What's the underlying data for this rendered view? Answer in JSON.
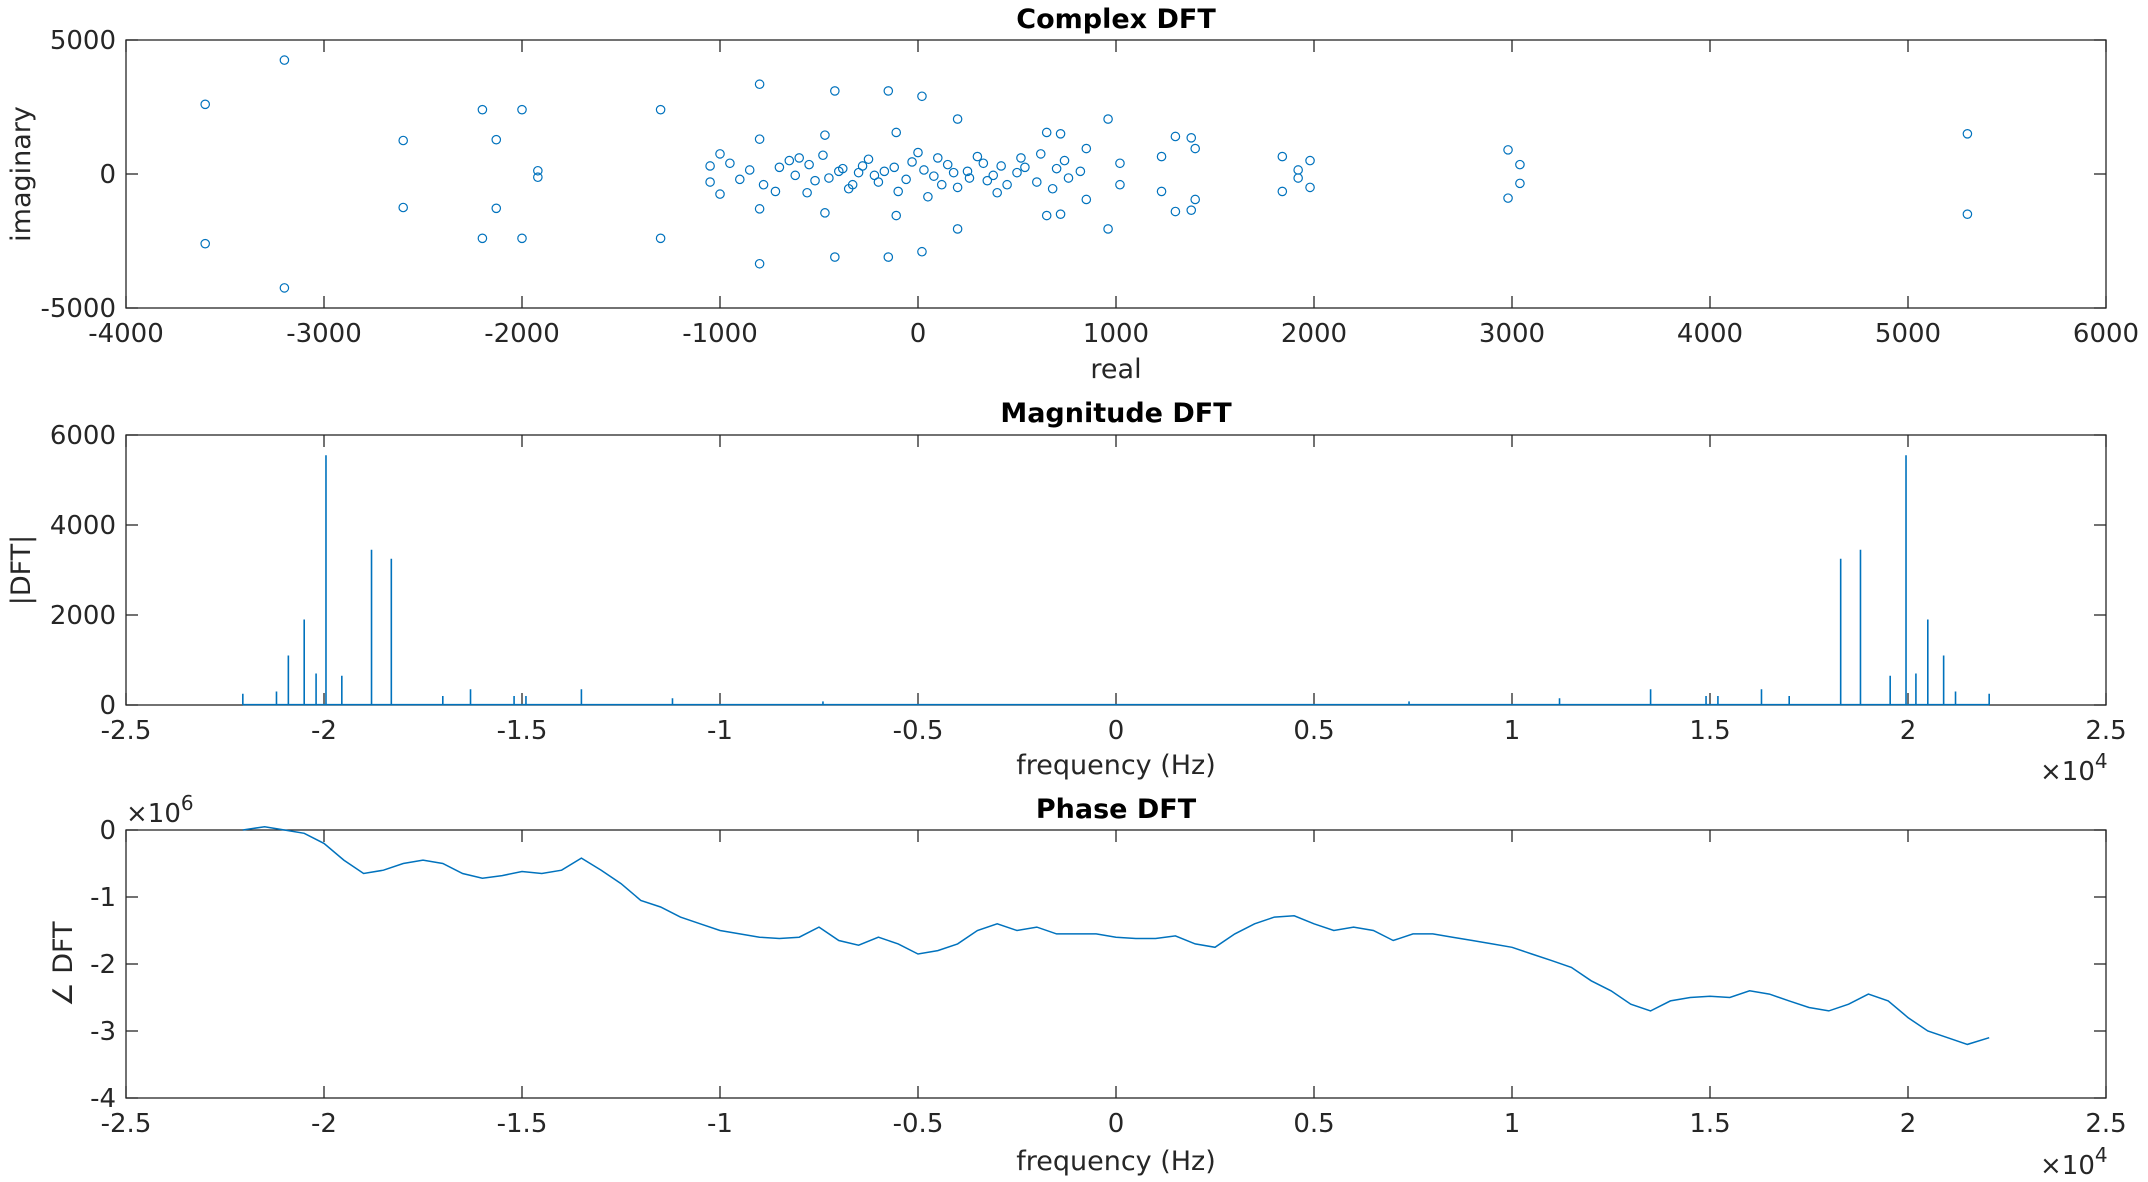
{
  "chart_data": [
    {
      "type": "scatter",
      "title": "Complex DFT",
      "xlabel": "real",
      "ylabel": "imaginary",
      "xlim": [
        -4000,
        6000
      ],
      "ylim": [
        -5000,
        5000
      ],
      "xticks": [
        "-4000",
        "-3000",
        "-2000",
        "-1000",
        "0",
        "1000",
        "2000",
        "3000",
        "4000",
        "5000",
        "6000"
      ],
      "yticks": [
        "-5000",
        "0",
        "5000"
      ],
      "color": "#0072BD",
      "marker": "open-circle",
      "points": [
        [
          -3600,
          2600
        ],
        [
          -3600,
          -2600
        ],
        [
          -3200,
          4250
        ],
        [
          -3200,
          -4250
        ],
        [
          -2600,
          1250
        ],
        [
          -2600,
          -1250
        ],
        [
          -2200,
          2400
        ],
        [
          -2200,
          -2400
        ],
        [
          -2130,
          1280
        ],
        [
          -2130,
          -1280
        ],
        [
          -2000,
          2400
        ],
        [
          -2000,
          -2400
        ],
        [
          -1920,
          120
        ],
        [
          -1920,
          -120
        ],
        [
          -1300,
          2400
        ],
        [
          -1300,
          -2400
        ],
        [
          -800,
          3350
        ],
        [
          -800,
          -3350
        ],
        [
          -420,
          3100
        ],
        [
          -420,
          -3100
        ],
        [
          -150,
          3100
        ],
        [
          -150,
          -3100
        ],
        [
          20,
          2900
        ],
        [
          20,
          -2900
        ],
        [
          200,
          2050
        ],
        [
          200,
          -2050
        ],
        [
          -800,
          1300
        ],
        [
          -800,
          -1300
        ],
        [
          -470,
          1450
        ],
        [
          -470,
          -1450
        ],
        [
          -110,
          1550
        ],
        [
          -110,
          -1550
        ],
        [
          -1000,
          750
        ],
        [
          -1000,
          -750
        ],
        [
          -1050,
          300
        ],
        [
          -1050,
          -300
        ],
        [
          650,
          1550
        ],
        [
          650,
          -1550
        ],
        [
          720,
          1500
        ],
        [
          720,
          -1500
        ],
        [
          850,
          950
        ],
        [
          850,
          -950
        ],
        [
          960,
          2050
        ],
        [
          960,
          -2050
        ],
        [
          1020,
          400
        ],
        [
          1020,
          -400
        ],
        [
          1230,
          650
        ],
        [
          1230,
          -650
        ],
        [
          1300,
          1400
        ],
        [
          1300,
          -1400
        ],
        [
          1380,
          1350
        ],
        [
          1380,
          -1350
        ],
        [
          1400,
          950
        ],
        [
          1400,
          -950
        ],
        [
          1840,
          650
        ],
        [
          1840,
          -650
        ],
        [
          1920,
          150
        ],
        [
          1920,
          -150
        ],
        [
          1980,
          500
        ],
        [
          1980,
          -500
        ],
        [
          2980,
          900
        ],
        [
          2980,
          -900
        ],
        [
          3040,
          350
        ],
        [
          3040,
          -350
        ],
        [
          5300,
          1500
        ],
        [
          5300,
          -1500
        ],
        [
          -120,
          250
        ],
        [
          -60,
          -200
        ],
        [
          30,
          150
        ],
        [
          80,
          -80
        ],
        [
          150,
          350
        ],
        [
          -200,
          -300
        ],
        [
          250,
          100
        ],
        [
          -300,
          50
        ],
        [
          350,
          -250
        ],
        [
          -380,
          200
        ],
        [
          420,
          300
        ],
        [
          -450,
          -150
        ],
        [
          500,
          50
        ],
        [
          -550,
          350
        ],
        [
          600,
          -300
        ],
        [
          -620,
          -50
        ],
        [
          700,
          200
        ],
        [
          -700,
          250
        ],
        [
          760,
          -150
        ],
        [
          -780,
          -400
        ],
        [
          820,
          100
        ],
        [
          -850,
          150
        ],
        [
          -900,
          -200
        ],
        [
          -950,
          400
        ],
        [
          100,
          600
        ],
        [
          -100,
          -650
        ],
        [
          200,
          -500
        ],
        [
          -250,
          550
        ],
        [
          300,
          650
        ],
        [
          -350,
          -550
        ],
        [
          400,
          -700
        ],
        [
          -480,
          700
        ],
        [
          520,
          600
        ],
        [
          -560,
          -700
        ],
        [
          620,
          750
        ],
        [
          -650,
          500
        ],
        [
          0,
          800
        ],
        [
          50,
          -850
        ],
        [
          -30,
          450
        ],
        [
          120,
          -400
        ],
        [
          -170,
          100
        ],
        [
          180,
          50
        ],
        [
          -220,
          -50
        ],
        [
          260,
          -150
        ],
        [
          -280,
          300
        ],
        [
          330,
          400
        ],
        [
          -330,
          -400
        ],
        [
          380,
          -50
        ],
        [
          -400,
          100
        ],
        [
          450,
          -400
        ],
        [
          -520,
          -250
        ],
        [
          540,
          250
        ],
        [
          -600,
          600
        ],
        [
          680,
          -550
        ],
        [
          -720,
          -650
        ],
        [
          740,
          500
        ]
      ]
    },
    {
      "type": "line",
      "title": "Magnitude DFT",
      "xlabel": "frequency (Hz)",
      "ylabel": "|DFT|",
      "xlim": [
        -25000,
        25000
      ],
      "ylim": [
        0,
        6000
      ],
      "x_exponent_label": "×10",
      "x_exponent": "4",
      "xticks": [
        "-2.5",
        "-2",
        "-1.5",
        "-1",
        "-0.5",
        "0",
        "0.5",
        "1",
        "1.5",
        "2",
        "2.5"
      ],
      "yticks": [
        "0",
        "2000",
        "4000",
        "6000"
      ],
      "color": "#0072BD",
      "peaks": [
        [
          -22050,
          250
        ],
        [
          -21200,
          300
        ],
        [
          -20900,
          1100
        ],
        [
          -20500,
          1900
        ],
        [
          -20200,
          700
        ],
        [
          -19950,
          5550
        ],
        [
          -19550,
          650
        ],
        [
          -18800,
          3450
        ],
        [
          -18300,
          3250
        ],
        [
          -17000,
          200
        ],
        [
          -16300,
          350
        ],
        [
          -15200,
          200
        ],
        [
          -14900,
          200
        ],
        [
          -13500,
          350
        ],
        [
          -11200,
          150
        ],
        [
          -7400,
          80
        ],
        [
          7400,
          80
        ],
        [
          11200,
          150
        ],
        [
          13500,
          350
        ],
        [
          14900,
          200
        ],
        [
          15200,
          200
        ],
        [
          16300,
          350
        ],
        [
          17000,
          200
        ],
        [
          18300,
          3250
        ],
        [
          18800,
          3450
        ],
        [
          19550,
          650
        ],
        [
          19950,
          5550
        ],
        [
          20200,
          700
        ],
        [
          20500,
          1900
        ],
        [
          20900,
          1100
        ],
        [
          21200,
          300
        ],
        [
          22050,
          250
        ]
      ]
    },
    {
      "type": "line",
      "title": "Phase DFT",
      "xlabel": "frequency (Hz)",
      "ylabel": "∠ DFT",
      "xlim": [
        -25000,
        25000
      ],
      "ylim": [
        -4000000,
        0
      ],
      "y_exponent_label": "×10",
      "y_exponent": "6",
      "x_exponent_label": "×10",
      "x_exponent": "4",
      "xticks": [
        "-2.5",
        "-2",
        "-1.5",
        "-1",
        "-0.5",
        "0",
        "0.5",
        "1",
        "1.5",
        "2",
        "2.5"
      ],
      "yticks": [
        "-4",
        "-3",
        "-2",
        "-1",
        "0"
      ],
      "color": "#0072BD",
      "x": [
        -22050,
        -21500,
        -21000,
        -20500,
        -20000,
        -19500,
        -19000,
        -18500,
        -18000,
        -17500,
        -17000,
        -16500,
        -16000,
        -15500,
        -15000,
        -14500,
        -14000,
        -13500,
        -13000,
        -12500,
        -12000,
        -11500,
        -11000,
        -10500,
        -10000,
        -9500,
        -9000,
        -8500,
        -8000,
        -7500,
        -7000,
        -6500,
        -6000,
        -5500,
        -5000,
        -4500,
        -4000,
        -3500,
        -3000,
        -2500,
        -2000,
        -1500,
        -1000,
        -500,
        0,
        500,
        1000,
        1500,
        2000,
        2500,
        3000,
        3500,
        4000,
        4500,
        5000,
        5500,
        6000,
        6500,
        7000,
        7500,
        8000,
        8500,
        9000,
        9500,
        10000,
        10500,
        11000,
        11500,
        12000,
        12500,
        13000,
        13500,
        14000,
        14500,
        15000,
        15500,
        16000,
        16500,
        17000,
        17500,
        18000,
        18500,
        19000,
        19500,
        20000,
        20500,
        21000,
        21500,
        22050
      ],
      "y": [
        0,
        50000,
        0,
        -50000,
        -200000,
        -450000,
        -650000,
        -600000,
        -500000,
        -450000,
        -500000,
        -650000,
        -720000,
        -680000,
        -620000,
        -650000,
        -600000,
        -420000,
        -600000,
        -800000,
        -1050000,
        -1150000,
        -1300000,
        -1400000,
        -1500000,
        -1550000,
        -1600000,
        -1620000,
        -1600000,
        -1450000,
        -1650000,
        -1720000,
        -1600000,
        -1700000,
        -1850000,
        -1800000,
        -1700000,
        -1500000,
        -1400000,
        -1500000,
        -1450000,
        -1550000,
        -1550000,
        -1550000,
        -1600000,
        -1620000,
        -1620000,
        -1580000,
        -1700000,
        -1750000,
        -1550000,
        -1400000,
        -1300000,
        -1280000,
        -1400000,
        -1500000,
        -1450000,
        -1500000,
        -1650000,
        -1550000,
        -1550000,
        -1600000,
        -1650000,
        -1700000,
        -1750000,
        -1850000,
        -1950000,
        -2050000,
        -2250000,
        -2400000,
        -2600000,
        -2700000,
        -2550000,
        -2500000,
        -2480000,
        -2500000,
        -2400000,
        -2450000,
        -2550000,
        -2650000,
        -2700000,
        -2600000,
        -2450000,
        -2550000,
        -2800000,
        -3000000,
        -3100000,
        -3200000,
        -3100000
      ]
    }
  ]
}
